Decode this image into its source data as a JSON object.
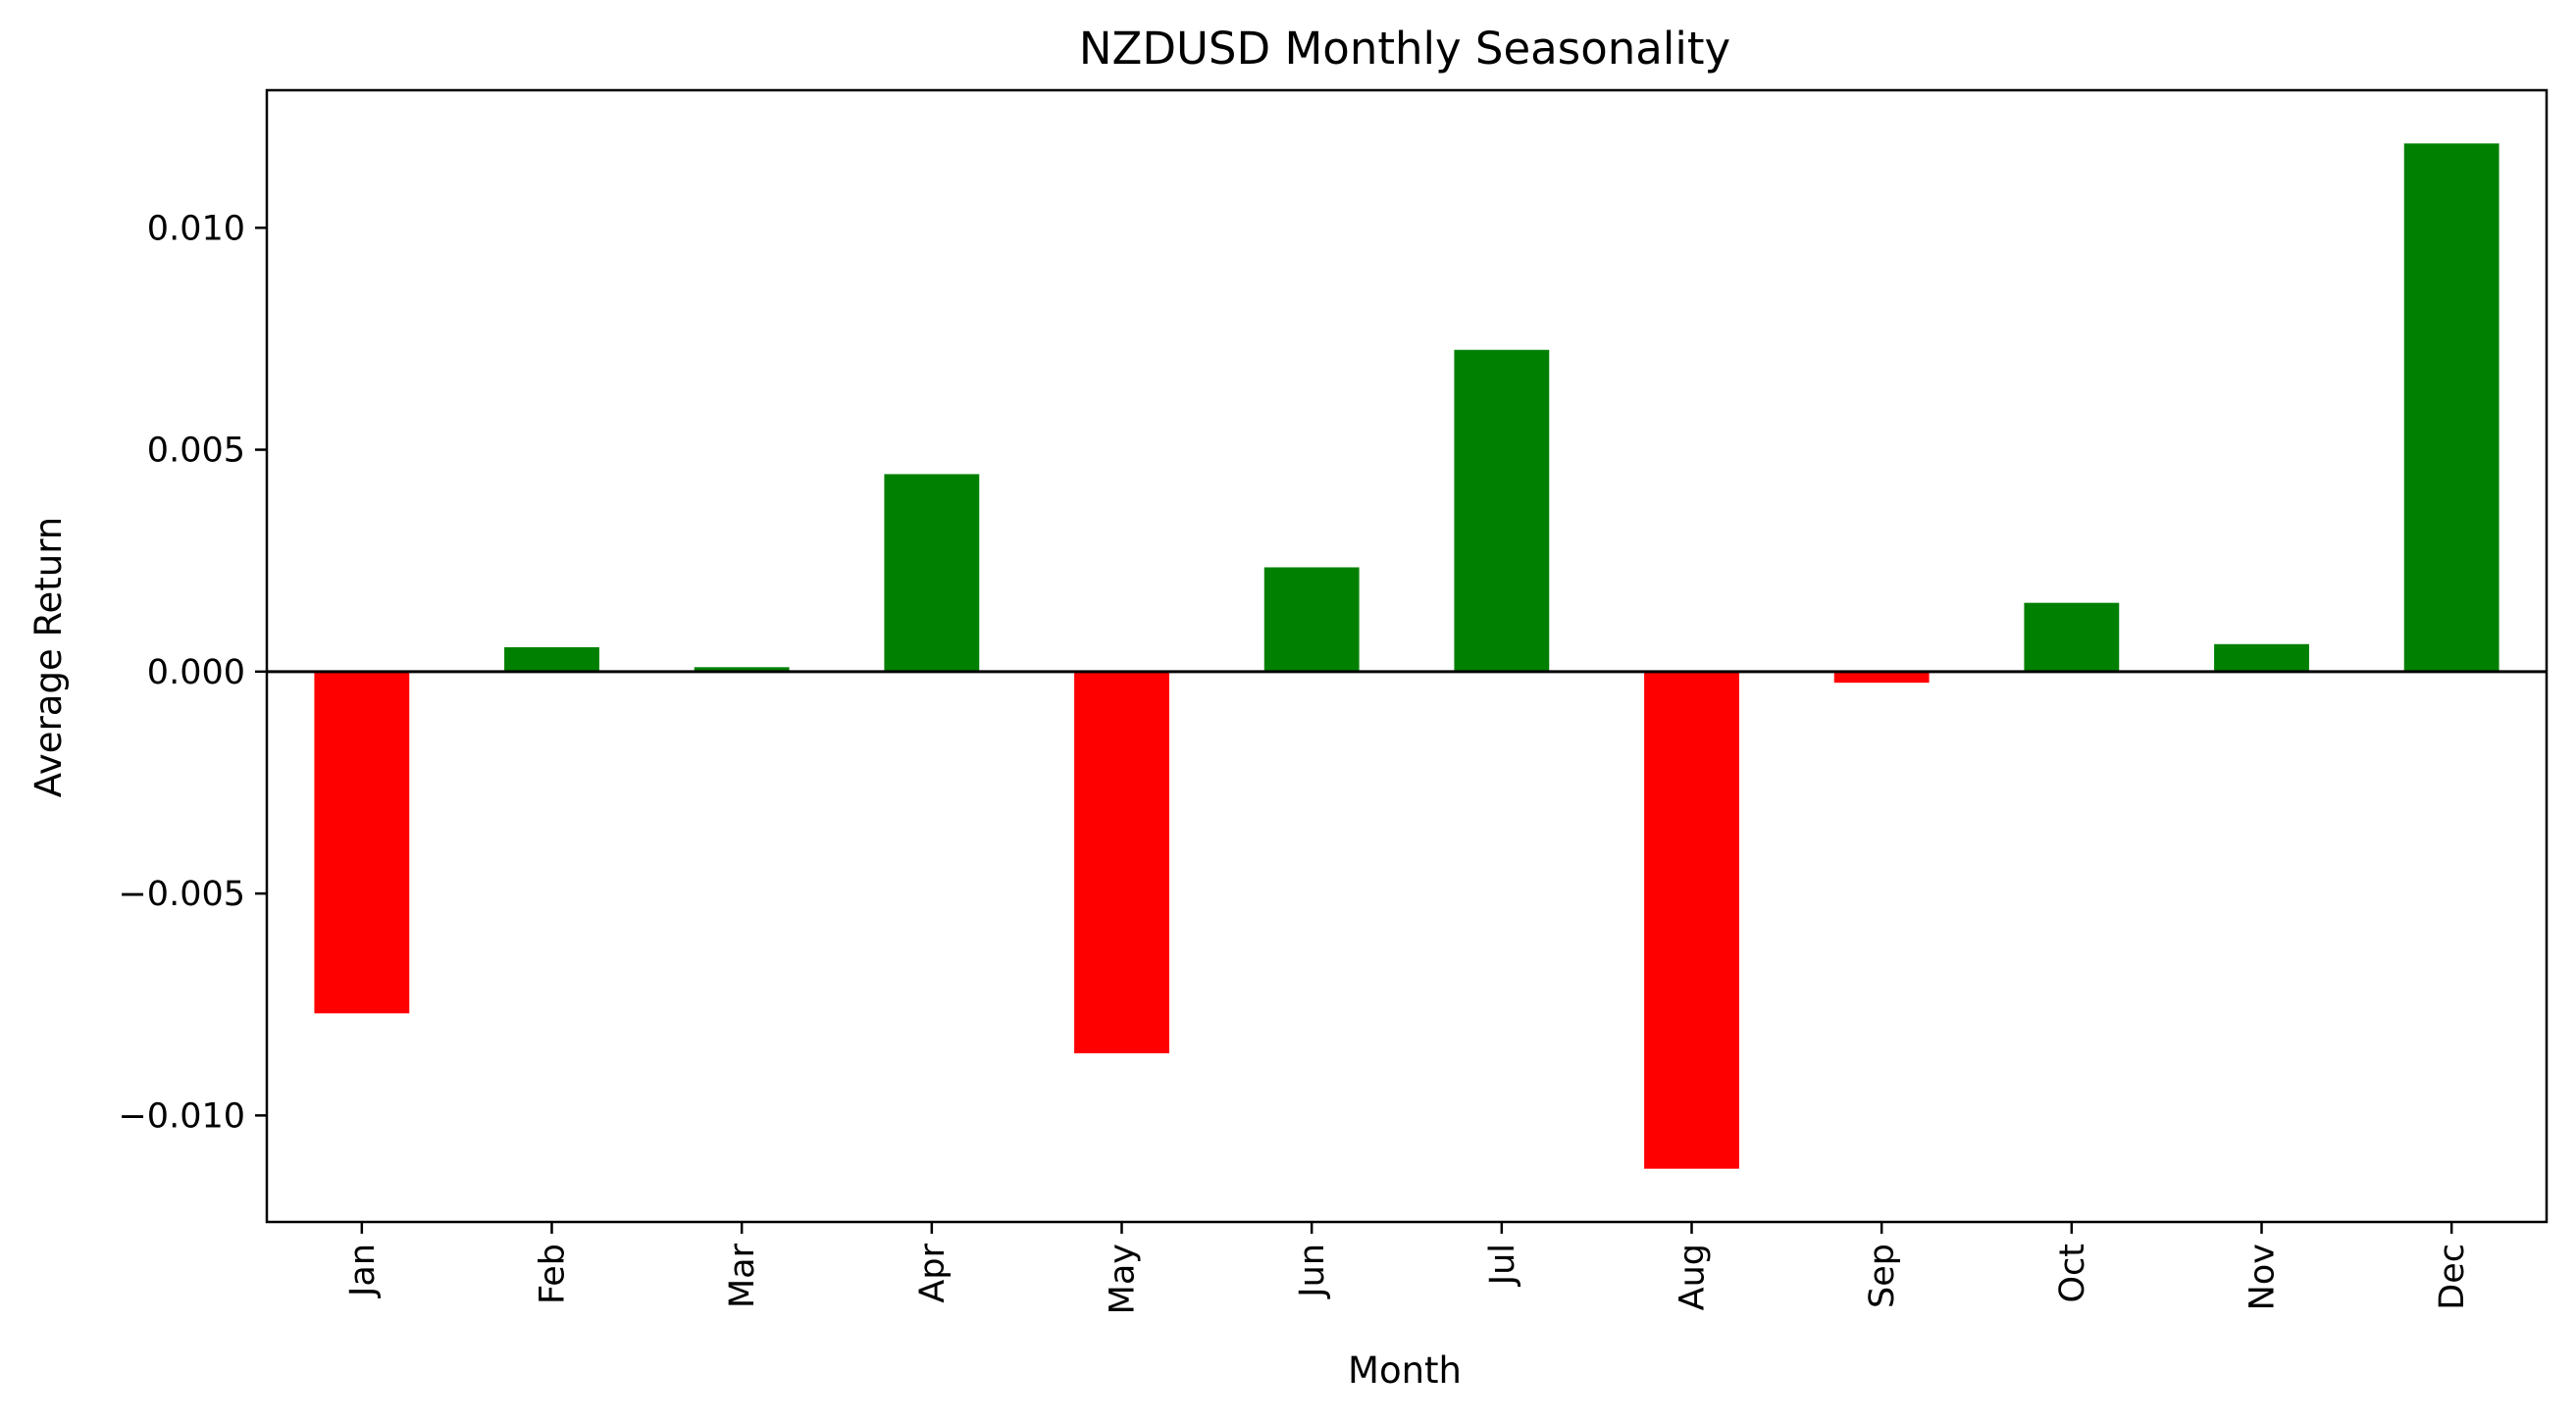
{
  "chart_data": {
    "type": "bar",
    "title": "NZDUSD Monthly Seasonality",
    "xlabel": "Month",
    "ylabel": "Average Return",
    "categories": [
      "Jan",
      "Feb",
      "Mar",
      "Apr",
      "May",
      "Jun",
      "Jul",
      "Aug",
      "Sep",
      "Oct",
      "Nov",
      "Dec"
    ],
    "values": [
      -0.0077,
      0.00055,
      0.0001,
      0.00445,
      -0.0086,
      0.00235,
      0.00725,
      -0.0112,
      -0.00025,
      0.00155,
      0.00062,
      0.0119
    ],
    "ylim": [
      -0.0124,
      0.0131
    ],
    "yticks": [
      -0.01,
      -0.005,
      0.0,
      0.005,
      0.01
    ],
    "ytick_labels": [
      "−0.010",
      "−0.005",
      "0.000",
      "0.005",
      "0.010"
    ],
    "positive_color": "#008000",
    "negative_color": "#ff0000",
    "zero_line": true,
    "grid": false,
    "legend": false
  }
}
